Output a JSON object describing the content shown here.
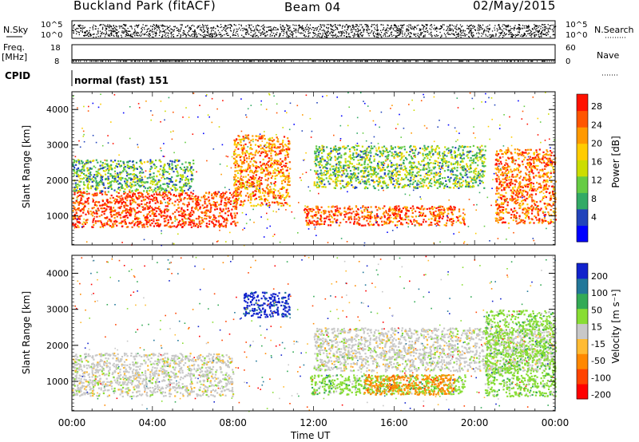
{
  "header": {
    "station": "Buckland Park (fitACF)",
    "beam": "Beam 04",
    "date": "02/May/2015"
  },
  "side_labels": {
    "nsky": "N.Sky",
    "nsearch": "N.Search",
    "freq": "Freq.",
    "freq_unit": "[MHz]",
    "nave": "Nave",
    "cpid": "CPID",
    "cpid_value": "normal (fast) 151"
  },
  "strip_ticks": {
    "noise_left": [
      "10^5",
      "10^0"
    ],
    "noise_right": [
      "10^5",
      "10^0"
    ],
    "freq_left": [
      "18",
      "8"
    ],
    "nave_right": [
      "60",
      "0"
    ]
  },
  "chart_data": [
    {
      "type": "heatmap",
      "panel": "power",
      "xlabel": "",
      "ylabel": "Slant Range [km]",
      "xlim_hours": [
        0,
        24
      ],
      "ylim": [
        180,
        4500
      ],
      "yticks": [
        1000,
        2000,
        3000,
        4000
      ],
      "colorbar": {
        "label": "Power [dB]",
        "ticks": [
          "4",
          "8",
          "12",
          "16",
          "20",
          "24",
          "28"
        ],
        "range": [
          0,
          30
        ],
        "colors": [
          "#0000ff",
          "#2244bb",
          "#33aa66",
          "#66cc44",
          "#ccdd00",
          "#ffcc00",
          "#ff9900",
          "#ff5500",
          "#ff1100"
        ]
      },
      "regions": [
        {
          "t0": 0.0,
          "t1": 8.2,
          "r0": 700,
          "r1": 1700,
          "level": 0.9
        },
        {
          "t0": 8.0,
          "t1": 10.8,
          "r0": 1300,
          "r1": 3300,
          "level": 0.75
        },
        {
          "t0": 11.5,
          "t1": 19.5,
          "r0": 750,
          "r1": 1300,
          "level": 0.85
        },
        {
          "t0": 12.0,
          "t1": 20.5,
          "r0": 1800,
          "r1": 3000,
          "level": 0.4
        },
        {
          "t0": 21.0,
          "t1": 24.0,
          "r0": 800,
          "r1": 2900,
          "level": 0.8
        },
        {
          "t0": 0.0,
          "t1": 6.0,
          "r0": 1700,
          "r1": 2600,
          "level": 0.35
        }
      ]
    },
    {
      "type": "heatmap",
      "panel": "velocity",
      "xlabel": "Time UT",
      "ylabel": "Slant Range [km]",
      "xlim_hours": [
        0,
        24
      ],
      "ylim": [
        180,
        4500
      ],
      "yticks": [
        1000,
        2000,
        3000,
        4000
      ],
      "xticks": [
        "00:00",
        "04:00",
        "08:00",
        "12:00",
        "16:00",
        "20:00",
        "00:00"
      ],
      "colorbar": {
        "label": "Velocity [m s⁻¹]",
        "ticks": [
          "200",
          "100",
          "50",
          "15",
          "-15",
          "-50",
          "-100",
          "-200"
        ],
        "colors": [
          "#1122cc",
          "#227799",
          "#33aa55",
          "#88dd33",
          "#c8c8c8",
          "#ffbb33",
          "#ff8800",
          "#ff4400",
          "#ff0000"
        ]
      },
      "regions": [
        {
          "t0": 0.0,
          "t1": 8.0,
          "r0": 600,
          "r1": 1800,
          "class": "gray"
        },
        {
          "t0": 11.8,
          "t1": 19.5,
          "r0": 650,
          "r1": 1200,
          "class": "green"
        },
        {
          "t0": 14.5,
          "t1": 19.0,
          "r0": 650,
          "r1": 1200,
          "class": "orange"
        },
        {
          "t0": 8.5,
          "t1": 10.8,
          "r0": 2800,
          "r1": 3500,
          "class": "blue"
        },
        {
          "t0": 12.0,
          "t1": 24.0,
          "r0": 1300,
          "r1": 2500,
          "class": "gray"
        },
        {
          "t0": 20.5,
          "t1": 24.0,
          "r0": 600,
          "r1": 3000,
          "class": "green"
        }
      ]
    }
  ]
}
